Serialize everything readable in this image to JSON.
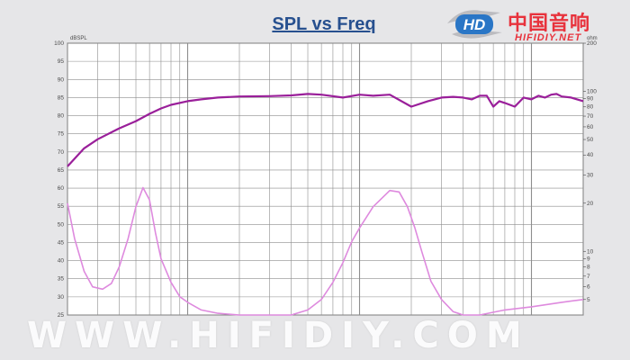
{
  "header": {
    "logo": {
      "cn": "中国音响",
      "en": "HIFIDIY.NET",
      "mark": "HD"
    }
  },
  "watermark": "WWW.HIFIDIY.COM",
  "colors": {
    "spl": "#9a1f9a",
    "impedance": "#de8ade",
    "grid": "#8d8d8d",
    "axis": "#4a4a4a",
    "logo": "#e8323c",
    "title": "#27508f"
  },
  "chart_data": {
    "type": "line",
    "title": "SPL vs Freq",
    "x_scale": "log",
    "x_range_hz": [
      20,
      20000
    ],
    "grid": true,
    "y_left": {
      "label": "dBSPL",
      "range": [
        25,
        100
      ],
      "ticks": [
        100,
        95,
        90,
        85,
        80,
        75,
        70,
        65,
        60,
        55,
        50,
        45,
        40,
        35,
        30,
        25
      ]
    },
    "y_right": {
      "label": "ohm",
      "scale": "log",
      "range": [
        4,
        200
      ],
      "ticks": [
        200,
        100,
        90,
        80,
        70,
        60,
        50,
        40,
        30,
        20,
        10,
        9,
        8,
        7,
        6,
        5
      ]
    },
    "series": [
      {
        "axis": "left",
        "x_hz": [
          20,
          25,
          30,
          40,
          50,
          60,
          70,
          80,
          100,
          120,
          150,
          200,
          300,
          400,
          500,
          600,
          800,
          1000,
          1200,
          1500,
          2000,
          2500,
          3000,
          3500,
          4000,
          4500,
          5000,
          5500,
          6000,
          6500,
          7000,
          8000,
          9000,
          10000,
          11000,
          12000,
          13000,
          14000,
          15000,
          17000,
          20000
        ],
        "y_db": [
          66,
          71,
          73.5,
          76.5,
          78.5,
          80.5,
          82,
          83,
          84,
          84.5,
          85,
          85.3,
          85.4,
          85.6,
          86,
          85.8,
          85,
          85.8,
          85.5,
          85.8,
          82.5,
          84,
          85,
          85.2,
          85,
          84.5,
          85.5,
          85.5,
          82.5,
          84,
          83.5,
          82.5,
          85,
          84.5,
          85.5,
          85,
          85.8,
          86,
          85.3,
          85,
          84
        ]
      },
      {
        "axis": "right",
        "x_hz": [
          20,
          22,
          25,
          28,
          32,
          36,
          40,
          45,
          50,
          55,
          60,
          65,
          70,
          80,
          90,
          100,
          120,
          150,
          200,
          300,
          400,
          500,
          600,
          700,
          800,
          900,
          1000,
          1200,
          1500,
          1700,
          1900,
          2100,
          2300,
          2600,
          3000,
          3500,
          4000,
          4500,
          5000,
          7000,
          10000,
          15000,
          20000
        ],
        "y_ohm": [
          20,
          12,
          7.5,
          6,
          5.8,
          6.3,
          8,
          12,
          19,
          25,
          21,
          13,
          9,
          6.4,
          5.2,
          4.8,
          4.3,
          4.1,
          4,
          4,
          4,
          4.3,
          5,
          6.4,
          8.5,
          11.5,
          14,
          19,
          24,
          23.5,
          19,
          14,
          10,
          6.5,
          5,
          4.2,
          4,
          4,
          4,
          4.3,
          4.5,
          4.8,
          5
        ]
      }
    ]
  }
}
